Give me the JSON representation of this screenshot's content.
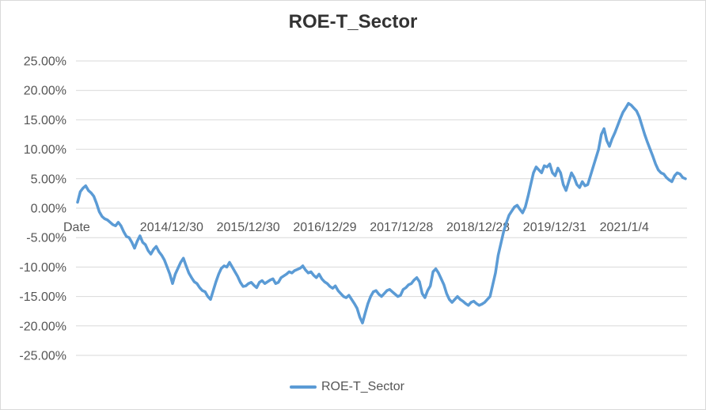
{
  "chart_data": {
    "type": "line",
    "title": "ROE-T_Sector",
    "xlabel": "",
    "ylabel": "",
    "x_tick_labels": [
      "Date",
      "2014/12/30",
      "2015/12/30",
      "2016/12/29",
      "2017/12/28",
      "2018/12/28",
      "2019/12/31",
      "2021/1/4"
    ],
    "y_tick_labels": [
      "25.00%",
      "20.00%",
      "15.00%",
      "10.00%",
      "5.00%",
      "0.00%",
      "-5.00%",
      "-10.00%",
      "-15.00%",
      "-20.00%",
      "-25.00%"
    ],
    "ylim": [
      -0.25,
      0.25
    ],
    "grid": true,
    "legend_position": "bottom",
    "series": [
      {
        "name": "ROE-T_Sector",
        "color": "#5b9bd5",
        "values": [
          0.01,
          0.028,
          0.034,
          0.038,
          0.03,
          0.026,
          0.02,
          0.008,
          -0.006,
          -0.014,
          -0.018,
          -0.02,
          -0.024,
          -0.028,
          -0.03,
          -0.024,
          -0.03,
          -0.04,
          -0.048,
          -0.05,
          -0.058,
          -0.068,
          -0.056,
          -0.047,
          -0.058,
          -0.062,
          -0.072,
          -0.078,
          -0.07,
          -0.065,
          -0.074,
          -0.08,
          -0.088,
          -0.1,
          -0.112,
          -0.128,
          -0.112,
          -0.102,
          -0.092,
          -0.085,
          -0.098,
          -0.11,
          -0.118,
          -0.125,
          -0.128,
          -0.135,
          -0.14,
          -0.142,
          -0.15,
          -0.155,
          -0.14,
          -0.125,
          -0.112,
          -0.102,
          -0.098,
          -0.1,
          -0.092,
          -0.1,
          -0.108,
          -0.116,
          -0.126,
          -0.133,
          -0.132,
          -0.128,
          -0.126,
          -0.131,
          -0.135,
          -0.126,
          -0.123,
          -0.128,
          -0.125,
          -0.122,
          -0.12,
          -0.128,
          -0.126,
          -0.118,
          -0.115,
          -0.112,
          -0.108,
          -0.11,
          -0.106,
          -0.104,
          -0.102,
          -0.098,
          -0.105,
          -0.11,
          -0.108,
          -0.114,
          -0.118,
          -0.112,
          -0.12,
          -0.125,
          -0.128,
          -0.133,
          -0.136,
          -0.132,
          -0.14,
          -0.145,
          -0.15,
          -0.152,
          -0.148,
          -0.155,
          -0.162,
          -0.17,
          -0.185,
          -0.195,
          -0.178,
          -0.162,
          -0.15,
          -0.142,
          -0.14,
          -0.146,
          -0.15,
          -0.145,
          -0.14,
          -0.138,
          -0.142,
          -0.146,
          -0.15,
          -0.148,
          -0.138,
          -0.135,
          -0.13,
          -0.128,
          -0.122,
          -0.118,
          -0.125,
          -0.145,
          -0.152,
          -0.14,
          -0.132,
          -0.108,
          -0.103,
          -0.11,
          -0.12,
          -0.13,
          -0.145,
          -0.155,
          -0.16,
          -0.155,
          -0.15,
          -0.155,
          -0.158,
          -0.162,
          -0.165,
          -0.16,
          -0.158,
          -0.162,
          -0.165,
          -0.163,
          -0.16,
          -0.155,
          -0.15,
          -0.13,
          -0.11,
          -0.08,
          -0.06,
          -0.04,
          -0.025,
          -0.012,
          -0.005,
          0.002,
          0.005,
          -0.002,
          -0.008,
          0.002,
          0.02,
          0.04,
          0.06,
          0.07,
          0.065,
          0.06,
          0.072,
          0.07,
          0.075,
          0.06,
          0.055,
          0.068,
          0.06,
          0.04,
          0.03,
          0.045,
          0.06,
          0.052,
          0.04,
          0.035,
          0.045,
          0.038,
          0.04,
          0.055,
          0.07,
          0.085,
          0.1,
          0.125,
          0.135,
          0.115,
          0.105,
          0.118,
          0.128,
          0.14,
          0.152,
          0.163,
          0.17,
          0.178,
          0.175,
          0.17,
          0.165,
          0.155,
          0.14,
          0.125,
          0.112,
          0.1,
          0.088,
          0.075,
          0.065,
          0.06,
          0.058,
          0.052,
          0.048,
          0.045,
          0.055,
          0.06,
          0.058,
          0.052,
          0.05
        ]
      }
    ]
  }
}
